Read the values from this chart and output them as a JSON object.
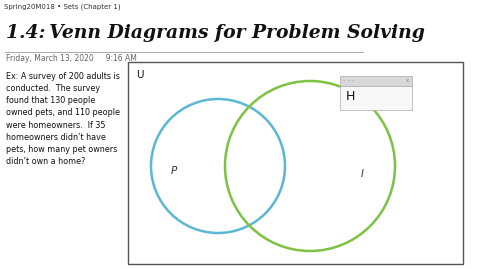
{
  "title": "1.4: Venn Diagrams for Problem Solving",
  "subtitle": "Friday, March 13, 2020     9:16 AM",
  "toolbar_text": "Spring20M018 • Sets (Chapter 1)",
  "problem_text": "Ex: A survey of 200 adults is\nconducted.  The survey\nfound that 130 people\nowned pets, and 110 people\nwere homeowners.  If 35\nhomeowners didn’t have\npets, how many pet owners\ndidn’t own a home?",
  "circle_P_color": "#5BB8D4",
  "circle_H_color": "#7DC242",
  "label_P": "P",
  "label_H": "H",
  "label_U": "U",
  "label_I": "I",
  "bg_color": "#ffffff",
  "toolbar_bg": "#f0f0f0",
  "venn_border_color": "#555555",
  "text_color": "#111111",
  "subtitle_color": "#666666"
}
